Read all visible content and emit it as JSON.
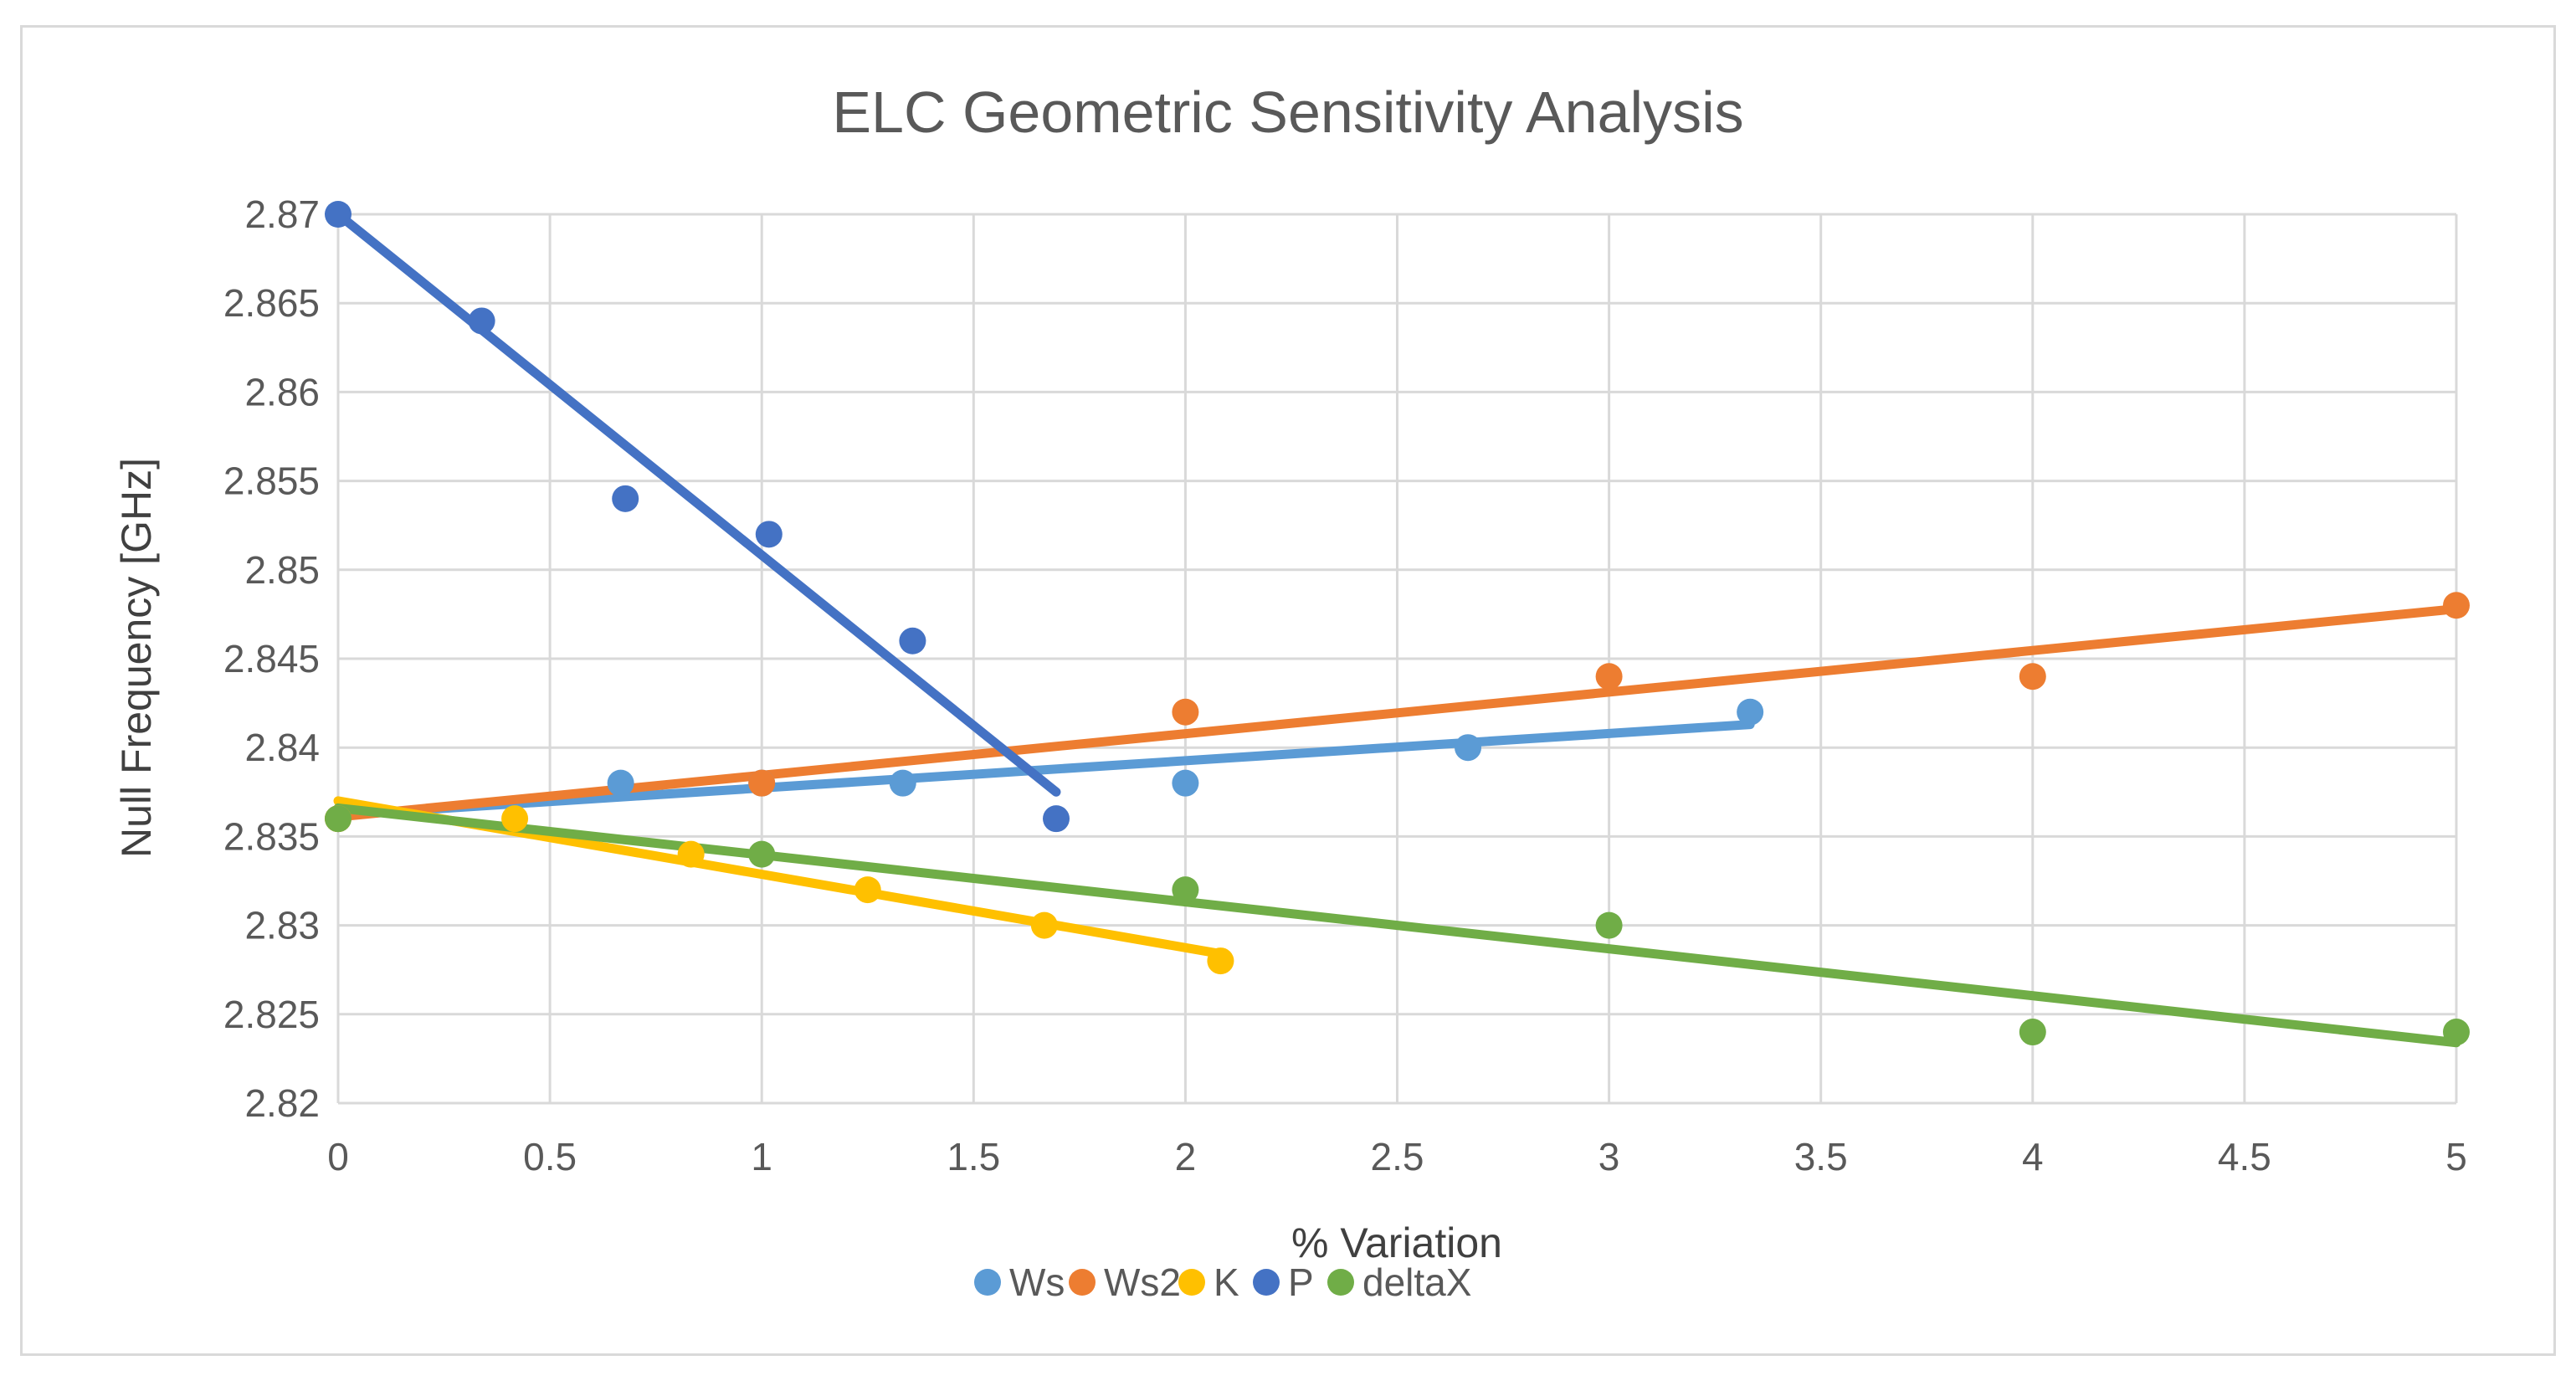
{
  "chart_data": {
    "type": "scatter",
    "title": "ELC Geometric Sensitivity Analysis",
    "xlabel": "% Variation",
    "ylabel": "Null Frequency [GHz]",
    "xlim": [
      0,
      5
    ],
    "ylim": [
      2.82,
      2.87
    ],
    "xticks": [
      0,
      0.5,
      1,
      1.5,
      2,
      2.5,
      3,
      3.5,
      4,
      4.5,
      5
    ],
    "xtick_labels": [
      "0",
      "0.5",
      "1",
      "1.5",
      "2",
      "2.5",
      "3",
      "3.5",
      "4",
      "4.5",
      "5"
    ],
    "yticks": [
      2.82,
      2.825,
      2.83,
      2.835,
      2.84,
      2.845,
      2.85,
      2.855,
      2.86,
      2.865,
      2.87
    ],
    "ytick_labels": [
      "2.82",
      "2.825",
      "2.83",
      "2.835",
      "2.84",
      "2.845",
      "2.85",
      "2.855",
      "2.86",
      "2.865",
      "2.87"
    ],
    "grid": true,
    "legend_position": "bottom",
    "series": [
      {
        "name": "Ws",
        "color": "#5B9BD5",
        "points": [
          [
            0,
            2.836
          ],
          [
            0.667,
            2.838
          ],
          [
            1.0,
            2.838
          ],
          [
            1.333,
            2.838
          ],
          [
            2.0,
            2.838
          ],
          [
            2.667,
            2.84
          ],
          [
            3.333,
            2.842
          ]
        ],
        "trendline": [
          [
            0,
            2.8362
          ],
          [
            3.333,
            2.8413
          ]
        ]
      },
      {
        "name": "Ws2",
        "color": "#ED7D31",
        "points": [
          [
            0,
            2.836
          ],
          [
            1.0,
            2.838
          ],
          [
            2.0,
            2.842
          ],
          [
            3.0,
            2.844
          ],
          [
            4.0,
            2.844
          ],
          [
            5.0,
            2.848
          ]
        ],
        "trendline": [
          [
            0,
            2.8361
          ],
          [
            5.0,
            2.8478
          ]
        ]
      },
      {
        "name": "K",
        "color": "#FFC000",
        "points": [
          [
            0,
            2.836
          ],
          [
            0.417,
            2.836
          ],
          [
            0.833,
            2.834
          ],
          [
            1.25,
            2.832
          ],
          [
            1.667,
            2.83
          ],
          [
            2.083,
            2.828
          ]
        ],
        "trendline": [
          [
            0,
            2.837
          ],
          [
            2.083,
            2.8284
          ]
        ]
      },
      {
        "name": "P",
        "color": "#4472C4",
        "points": [
          [
            0,
            2.87
          ],
          [
            0.339,
            2.864
          ],
          [
            0.678,
            2.854
          ],
          [
            1.017,
            2.852
          ],
          [
            1.356,
            2.846
          ],
          [
            1.695,
            2.836
          ]
        ],
        "trendline": [
          [
            0,
            2.87
          ],
          [
            1.695,
            2.8375
          ]
        ]
      },
      {
        "name": "deltaX",
        "color": "#70AD47",
        "points": [
          [
            0,
            2.836
          ],
          [
            1.0,
            2.834
          ],
          [
            2.0,
            2.832
          ],
          [
            3.0,
            2.83
          ],
          [
            4.0,
            2.824
          ],
          [
            5.0,
            2.824
          ]
        ],
        "trendline": [
          [
            0,
            2.8366
          ],
          [
            5.0,
            2.8234
          ]
        ]
      }
    ]
  }
}
